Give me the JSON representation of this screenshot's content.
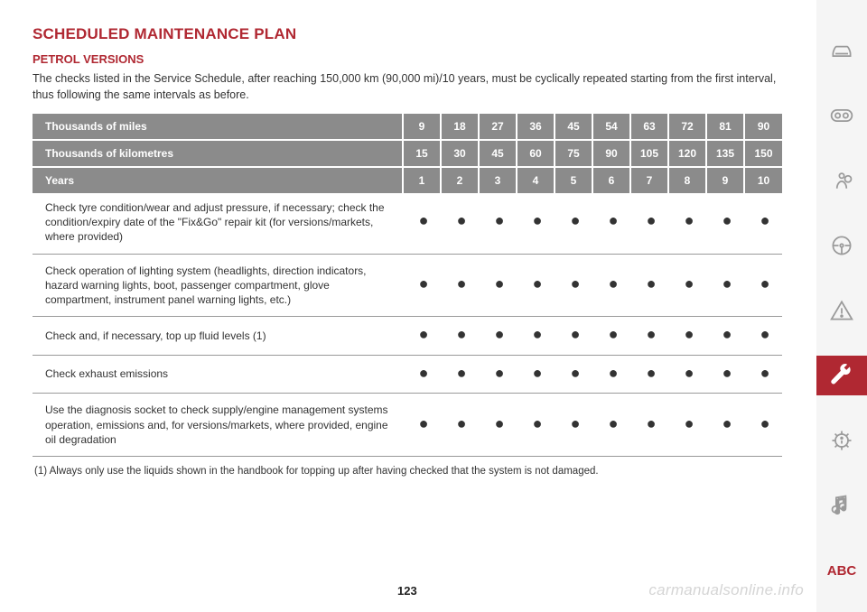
{
  "title": "SCHEDULED MAINTENANCE PLAN",
  "subtitle": "PETROL VERSIONS",
  "intro": "The checks listed in the Service Schedule, after reaching 150,000 km (90,000 mi)/10 years, must be cyclically repeated starting from the first interval, thus following the same intervals as before.",
  "headers": {
    "miles_label": "Thousands of miles",
    "km_label": "Thousands of kilometres",
    "years_label": "Years",
    "miles": [
      "9",
      "18",
      "27",
      "36",
      "45",
      "54",
      "63",
      "72",
      "81",
      "90"
    ],
    "km": [
      "15",
      "30",
      "45",
      "60",
      "75",
      "90",
      "105",
      "120",
      "135",
      "150"
    ],
    "years": [
      "1",
      "2",
      "3",
      "4",
      "5",
      "6",
      "7",
      "8",
      "9",
      "10"
    ]
  },
  "rows": [
    {
      "label": "Check tyre condition/wear and adjust pressure, if necessary; check the condition/expiry date of the \"Fix&Go\" repair kit (for versions/markets, where provided)",
      "dots": [
        1,
        1,
        1,
        1,
        1,
        1,
        1,
        1,
        1,
        1
      ]
    },
    {
      "label": "Check operation of lighting system (headlights, direction indicators, hazard warning lights, boot, passenger compartment, glove compartment, instrument panel warning lights, etc.)",
      "dots": [
        1,
        1,
        1,
        1,
        1,
        1,
        1,
        1,
        1,
        1
      ]
    },
    {
      "label": "Check and, if necessary, top up fluid levels (1)",
      "dots": [
        1,
        1,
        1,
        1,
        1,
        1,
        1,
        1,
        1,
        1
      ]
    },
    {
      "label": "Check exhaust emissions",
      "dots": [
        1,
        1,
        1,
        1,
        1,
        1,
        1,
        1,
        1,
        1
      ]
    },
    {
      "label": "Use the diagnosis socket to check supply/engine management systems operation, emissions and, for versions/markets, where provided, engine oil degradation",
      "dots": [
        1,
        1,
        1,
        1,
        1,
        1,
        1,
        1,
        1,
        1
      ]
    }
  ],
  "footnote": "(1) Always only use the liquids shown in the handbook for topping up after having checked that the system is not damaged.",
  "watermark": "carmanualsonline.info",
  "pagenum": "123",
  "sidebar_abc": "ABC",
  "colors": {
    "accent": "#b02832",
    "header_bg": "#8b8b8b",
    "text": "#333333",
    "sidebar_bg": "#f5f5f5",
    "icon_inactive": "#9a9a9a"
  }
}
